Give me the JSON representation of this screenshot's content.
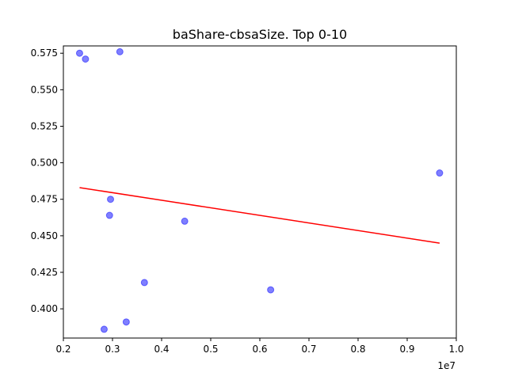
{
  "chart_data": {
    "type": "scatter",
    "title": "baShare-cbsaSize. Top 0-10",
    "xlabel": "",
    "ylabel": "",
    "x_offset_label": "1e7",
    "xlim": [
      0.2,
      1.0
    ],
    "ylim": [
      0.38,
      0.58
    ],
    "x_ticks": [
      0.2,
      0.3,
      0.4,
      0.5,
      0.6,
      0.7,
      0.8,
      0.9,
      1.0
    ],
    "x_tick_labels": [
      "0.2",
      "0.3",
      "0.4",
      "0.5",
      "0.6",
      "0.7",
      "0.8",
      "0.9",
      "1.0"
    ],
    "y_ticks": [
      0.4,
      0.425,
      0.45,
      0.475,
      0.5,
      0.525,
      0.55,
      0.575
    ],
    "y_tick_labels": [
      "0.400",
      "0.425",
      "0.450",
      "0.475",
      "0.500",
      "0.525",
      "0.550",
      "0.575"
    ],
    "grid": false,
    "series": [
      {
        "color": "#0000ff",
        "points": [
          {
            "x": 0.233,
            "y": 0.575
          },
          {
            "x": 0.245,
            "y": 0.571
          },
          {
            "x": 0.315,
            "y": 0.576
          },
          {
            "x": 0.296,
            "y": 0.475
          },
          {
            "x": 0.294,
            "y": 0.464
          },
          {
            "x": 0.447,
            "y": 0.46
          },
          {
            "x": 0.365,
            "y": 0.418
          },
          {
            "x": 0.622,
            "y": 0.413
          },
          {
            "x": 0.328,
            "y": 0.391
          },
          {
            "x": 0.283,
            "y": 0.386
          },
          {
            "x": 0.966,
            "y": 0.493
          }
        ]
      }
    ],
    "trendline": {
      "color": "#ff0000",
      "x": [
        0.233,
        0.966
      ],
      "y": [
        0.483,
        0.445
      ]
    }
  }
}
